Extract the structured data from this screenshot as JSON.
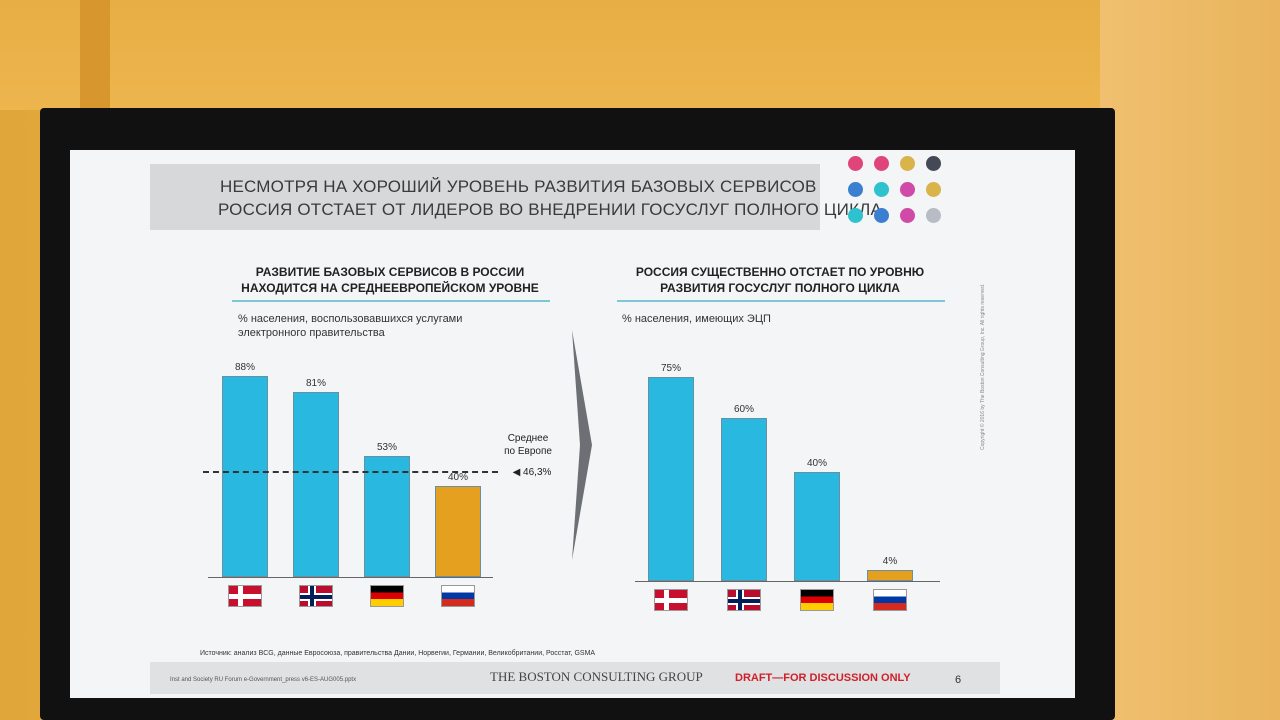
{
  "slide": {
    "title_lines": [
      "НЕСМОТРЯ НА ХОРОШИЙ УРОВЕНЬ РАЗВИТИЯ БАЗОВЫХ СЕРВИСОВ",
      "РОССИЯ ОТСТАЕТ ОТ ЛИДЕРОВ ВО ВНЕДРЕНИИ ГОСУСЛУГ ПОЛНОГО ЦИКЛА"
    ],
    "dot_colors": [
      "#e0457a",
      "#e0457a",
      "#d8b44a",
      "#444a55",
      "#3a7fd0",
      "#2ec2cf",
      "#d04aa8",
      "#d8b44a",
      "#2ec2cf",
      "#3a7fd0",
      "#d04aa8",
      "#b8bcc4"
    ],
    "source": "Источник: анализ BCG, данные Евросоюза, правительства Дании, Норвегии, Германии, Великобритании, Росстат, GSMA",
    "file_note": "Inst and Society RU Forum e-Government_press v6-ES-AUG005.pptx",
    "brand": "THE BOSTON CONSULTING GROUP",
    "draft": "DRAFT—FOR DISCUSSION ONLY",
    "page_number": "6",
    "copyright": "Copyright © 2016 by The Boston Consulting Group, Inc. All rights reserved."
  },
  "colors": {
    "bar_blue": "#29b8e0",
    "bar_russia": "#e5a01f"
  },
  "chart_data": [
    {
      "type": "bar",
      "title_lines": [
        "РАЗВИТИЕ БАЗОВЫХ СЕРВИСОВ В РОССИИ",
        "НАХОДИТСЯ НА СРЕДНЕЕВРОПЕЙСКОМ УРОВНЕ"
      ],
      "subtitle_lines": [
        "% населения, воспользовавшихся услугами",
        "электронного правительства"
      ],
      "categories": [
        "denmark-flag",
        "norway-flag",
        "germany-flag",
        "russia-flag"
      ],
      "values": [
        88,
        81,
        53,
        40
      ],
      "value_labels": [
        "88%",
        "81%",
        "53%",
        "40%"
      ],
      "reference_line": {
        "value": 46.3,
        "label_lines": [
          "Среднее",
          "по Европе"
        ],
        "value_label": "46,3%"
      }
    },
    {
      "type": "bar",
      "title_lines": [
        "РОССИЯ СУЩЕСТВЕННО ОТСТАЕТ ПО УРОВНЮ",
        "РАЗВИТИЯ ГОСУСЛУГ ПОЛНОГО ЦИКЛА"
      ],
      "subtitle_lines": [
        "% населения, имеющих ЭЦП"
      ],
      "categories": [
        "denmark-flag",
        "norway-flag",
        "germany-flag",
        "russia-flag"
      ],
      "values": [
        75,
        60,
        40,
        4
      ],
      "value_labels": [
        "75%",
        "60%",
        "40%",
        "4%"
      ]
    }
  ]
}
